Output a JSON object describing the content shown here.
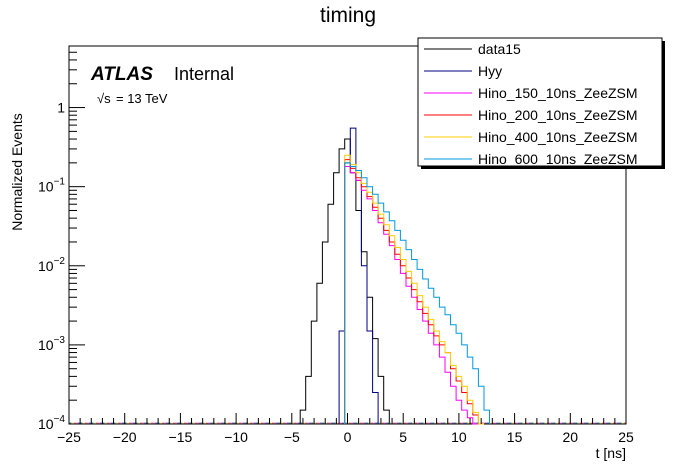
{
  "chart_data": {
    "type": "line",
    "title": "timing",
    "xlabel": "t [ns]",
    "ylabel": "Normalized Events",
    "xlim": [
      -25,
      25
    ],
    "ylim": [
      0.0001,
      6
    ],
    "yscale": "log",
    "x_ticks": [
      "−25",
      "−20",
      "−15",
      "−10",
      "−5",
      "0",
      "5",
      "10",
      "15",
      "20",
      "25"
    ],
    "y_ticks": [
      {
        "base": "10",
        "exp": "−4",
        "value": 0.0001
      },
      {
        "base": "10",
        "exp": "−3",
        "value": 0.001
      },
      {
        "base": "10",
        "exp": "−2",
        "value": 0.01
      },
      {
        "base": "10",
        "exp": "−1",
        "value": 0.1
      },
      {
        "base": "1",
        "exp": "",
        "value": 1
      }
    ],
    "annotations": {
      "atlas": "ATLAS",
      "internal": "Internal",
      "energy_sqrt": "√s",
      "energy_rest": "= 13 TeV"
    },
    "series": [
      {
        "name": "data15",
        "color": "#000000",
        "x": [
          -4.0,
          -3.5,
          -3.0,
          -2.5,
          -2.0,
          -1.5,
          -1.0,
          -0.5,
          0.0,
          0.5,
          1.0,
          1.5,
          2.0,
          2.5,
          3.0,
          3.5
        ],
        "values": [
          0.00015,
          0.0004,
          0.002,
          0.006,
          0.02,
          0.06,
          0.15,
          0.3,
          0.4,
          0.15,
          0.05,
          0.015,
          0.004,
          0.0012,
          0.0004,
          0.00015
        ]
      },
      {
        "name": "Hyy",
        "color": "#000080",
        "x": [
          -0.5,
          0.0,
          0.5,
          1.0,
          1.5,
          2.0,
          2.5
        ],
        "values": [
          0.0015,
          0.2,
          0.55,
          0.12,
          0.01,
          0.0015,
          0.00025
        ]
      },
      {
        "name": "Hino_150_10ns_ZeeZSM",
        "color": "#ff00ff",
        "x": [
          0.0,
          0.5,
          1.0,
          1.5,
          2.0,
          2.5,
          3.0,
          3.5,
          4.0,
          4.5,
          5.0,
          5.5,
          6.0,
          6.5,
          7.0,
          7.5,
          8.0,
          8.5,
          9.0,
          9.5,
          10.0,
          10.5,
          11.0,
          11.5,
          12.0
        ],
        "values": [
          0.18,
          0.15,
          0.12,
          0.09,
          0.07,
          0.05,
          0.035,
          0.025,
          0.018,
          0.012,
          0.008,
          0.0055,
          0.004,
          0.0028,
          0.002,
          0.0014,
          0.001,
          0.0007,
          0.00045,
          0.0003,
          0.0002,
          0.00015,
          0.00012,
          0.0001,
          0.0001
        ]
      },
      {
        "name": "Hino_200_10ns_ZeeZSM",
        "color": "#ff0000",
        "x": [
          0.0,
          0.5,
          1.0,
          1.5,
          2.0,
          2.5,
          3.0,
          3.5,
          4.0,
          4.5,
          5.0,
          5.5,
          6.0,
          6.5,
          7.0,
          7.5,
          8.0,
          8.5,
          9.0,
          9.5,
          10.0,
          10.5,
          11.0,
          11.5,
          12.0
        ],
        "values": [
          0.22,
          0.17,
          0.13,
          0.1,
          0.075,
          0.055,
          0.04,
          0.028,
          0.02,
          0.014,
          0.01,
          0.007,
          0.005,
          0.0035,
          0.0025,
          0.0018,
          0.0013,
          0.001,
          0.0008,
          0.0005,
          0.00035,
          0.00025,
          0.00018,
          0.00013,
          0.0001
        ]
      },
      {
        "name": "Hino_400_10ns_ZeeZSM",
        "color": "#ffcc00",
        "x": [
          0.0,
          0.5,
          1.0,
          1.5,
          2.0,
          2.5,
          3.0,
          3.5,
          4.0,
          4.5,
          5.0,
          5.5,
          6.0,
          6.5,
          7.0,
          7.5,
          8.0,
          8.5,
          9.0,
          9.5,
          10.0,
          10.5,
          11.0,
          11.5,
          12.0
        ],
        "values": [
          0.25,
          0.19,
          0.15,
          0.11,
          0.085,
          0.062,
          0.045,
          0.033,
          0.024,
          0.017,
          0.012,
          0.0085,
          0.006,
          0.0042,
          0.003,
          0.0021,
          0.0015,
          0.0011,
          0.0008,
          0.00055,
          0.0004,
          0.0003,
          0.0002,
          0.00014,
          0.0001
        ]
      },
      {
        "name": "Hino_600_10ns_ZeeZSM",
        "color": "#0099dd",
        "x": [
          0.0,
          0.5,
          1.0,
          1.5,
          2.0,
          2.5,
          3.0,
          3.5,
          4.0,
          4.5,
          5.0,
          5.5,
          6.0,
          6.5,
          7.0,
          7.5,
          8.0,
          8.5,
          9.0,
          9.5,
          10.0,
          10.5,
          11.0,
          11.5,
          12.0,
          12.5
        ],
        "values": [
          0.2,
          0.18,
          0.16,
          0.13,
          0.1,
          0.08,
          0.062,
          0.048,
          0.037,
          0.028,
          0.021,
          0.016,
          0.012,
          0.009,
          0.0068,
          0.0052,
          0.004,
          0.003,
          0.0024,
          0.0018,
          0.0014,
          0.001,
          0.0007,
          0.0005,
          0.0003,
          0.00015
        ]
      }
    ]
  }
}
